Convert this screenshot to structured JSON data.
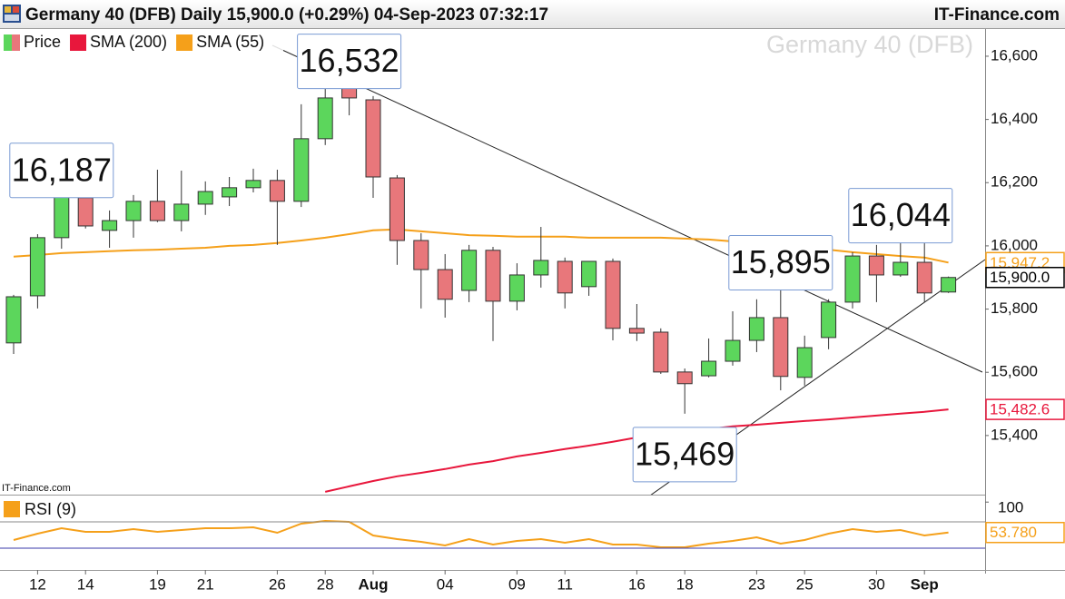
{
  "chart_data": {
    "type": "candlestick",
    "title": "Germany 40 (DFB) Daily 15,900.0 (+0.29%) 04-Sep-2023 07:32:17",
    "brand": "IT-Finance.com",
    "watermark": "Germany 40 (DFB)",
    "credit": "IT-Finance.com",
    "categories": [
      null,
      "12",
      null,
      "14",
      null,
      null,
      "19",
      null,
      "21",
      null,
      null,
      "26",
      null,
      "28",
      null,
      "Aug",
      null,
      null,
      "04",
      null,
      null,
      "09",
      null,
      "11",
      null,
      null,
      "16",
      null,
      "18",
      null,
      null,
      "23",
      null,
      "25",
      null,
      null,
      "30",
      null,
      "Sep",
      null
    ],
    "price": {
      "name": "Price",
      "up_color": "#5cd65c",
      "down_color": "#e8777b",
      "last_label": "15,900.0",
      "open": [
        15693,
        15842,
        16026,
        16152,
        16049,
        16080,
        16141,
        16080,
        16132,
        16155,
        16184,
        16207,
        16141,
        16339,
        16502,
        16462,
        16215,
        16017,
        15925,
        15859,
        15986,
        15825,
        15908,
        15951,
        15871,
        15951,
        15739,
        15727,
        15601,
        15589,
        15635,
        15701,
        15773,
        15584,
        15710,
        15822,
        15968,
        15908,
        15948,
        15854
      ],
      "high": [
        15845,
        16037,
        16187,
        16161,
        16112,
        16161,
        16241,
        16238,
        16204,
        16218,
        16244,
        16241,
        16448,
        16497,
        16532,
        16474,
        16224,
        16040,
        15974,
        16003,
        15997,
        15945,
        16060,
        15963,
        15951,
        15960,
        15816,
        15739,
        15612,
        15707,
        15793,
        15831,
        15895,
        15716,
        15831,
        15980,
        16003,
        16044,
        16009,
        15903
      ],
      "low": [
        15658,
        15802,
        15991,
        16055,
        15994,
        16026,
        16075,
        16046,
        16098,
        16126,
        16169,
        16003,
        16123,
        16319,
        16413,
        16152,
        15940,
        15802,
        15773,
        15822,
        15699,
        15796,
        15868,
        15802,
        15842,
        15701,
        15699,
        15595,
        15469,
        15584,
        15621,
        15664,
        15543,
        15558,
        15673,
        15802,
        15822,
        15902,
        15822,
        15851
      ],
      "close": [
        15839,
        16026,
        16158,
        16063,
        16080,
        16141,
        16080,
        16132,
        16172,
        16184,
        16207,
        16141,
        16339,
        16468,
        16468,
        16218,
        16017,
        15925,
        15831,
        15986,
        15825,
        15908,
        15954,
        15851,
        15951,
        15739,
        15724,
        15601,
        15564,
        15635,
        15701,
        15773,
        15587,
        15678,
        15822,
        15968,
        15908,
        15948,
        15851,
        15900
      ]
    },
    "series": [
      {
        "name": "SMA (200)",
        "color": "#e8173c",
        "last_label": "15,482.6",
        "values": [
          null,
          null,
          null,
          null,
          null,
          null,
          null,
          null,
          null,
          null,
          null,
          null,
          null,
          15222,
          15239,
          15256,
          15271,
          15282,
          15294,
          15308,
          15319,
          15334,
          15345,
          15357,
          15368,
          15380,
          15394,
          15403,
          15411,
          15420,
          15429,
          15434,
          15440,
          15446,
          15451,
          15457,
          15463,
          15469,
          15475,
          15482.6
        ]
      },
      {
        "name": "SMA (55)",
        "color": "#f5a01a",
        "last_label": "15,947.2",
        "values": [
          15966,
          15971,
          15977,
          15980,
          15983,
          15986,
          15988,
          15991,
          15994,
          16000,
          16003,
          16009,
          16017,
          16026,
          16037,
          16049,
          16052,
          16046,
          16040,
          16034,
          16032,
          16029,
          16029,
          16029,
          16026,
          16026,
          16026,
          16026,
          16023,
          16020,
          16014,
          16009,
          16003,
          15997,
          15988,
          15980,
          15974,
          15968,
          15963,
          15947.2
        ]
      }
    ],
    "annotations": [
      {
        "value": 16187,
        "label": "16,187",
        "kind": "high"
      },
      {
        "value": 16532,
        "label": "16,532",
        "kind": "high"
      },
      {
        "value": 15895,
        "label": "15,895",
        "kind": "high"
      },
      {
        "value": 16044,
        "label": "16,044",
        "kind": "high"
      },
      {
        "value": 15469,
        "label": "15,469",
        "kind": "low"
      }
    ],
    "ylim": [
      15213,
      16686
    ],
    "yticks": [
      {
        "value": 15400,
        "label": "15,400"
      },
      {
        "value": 15600,
        "label": "15,600"
      },
      {
        "value": 15800,
        "label": "15,800"
      },
      {
        "value": 16000,
        "label": "16,000"
      },
      {
        "value": 16200,
        "label": "16,200"
      },
      {
        "value": 16400,
        "label": "16,400"
      },
      {
        "value": 16600,
        "label": "16,600"
      }
    ],
    "rsi": {
      "name": "RSI (9)",
      "color": "#f5a01a",
      "last_label": "53.780",
      "values": [
        42.4,
        52.1,
        60.3,
        54.8,
        54.8,
        59.0,
        54.8,
        57.6,
        60.3,
        60.3,
        61.7,
        53.4,
        67.2,
        71.4,
        70.0,
        49.3,
        43.8,
        39.7,
        34.1,
        43.8,
        35.5,
        41.0,
        43.8,
        38.3,
        43.8,
        35.5,
        35.5,
        31.4,
        31.4,
        36.9,
        41.0,
        46.6,
        36.9,
        42.4,
        52.1,
        59.0,
        54.8,
        57.6,
        49.3,
        53.78
      ],
      "ylim": [
        -3.1,
        107.2
      ],
      "yticks": [
        100
      ],
      "levels": [
        {
          "value": 70,
          "color": "#888888"
        },
        {
          "value": 30,
          "color": "#3a3aa8"
        }
      ]
    }
  }
}
